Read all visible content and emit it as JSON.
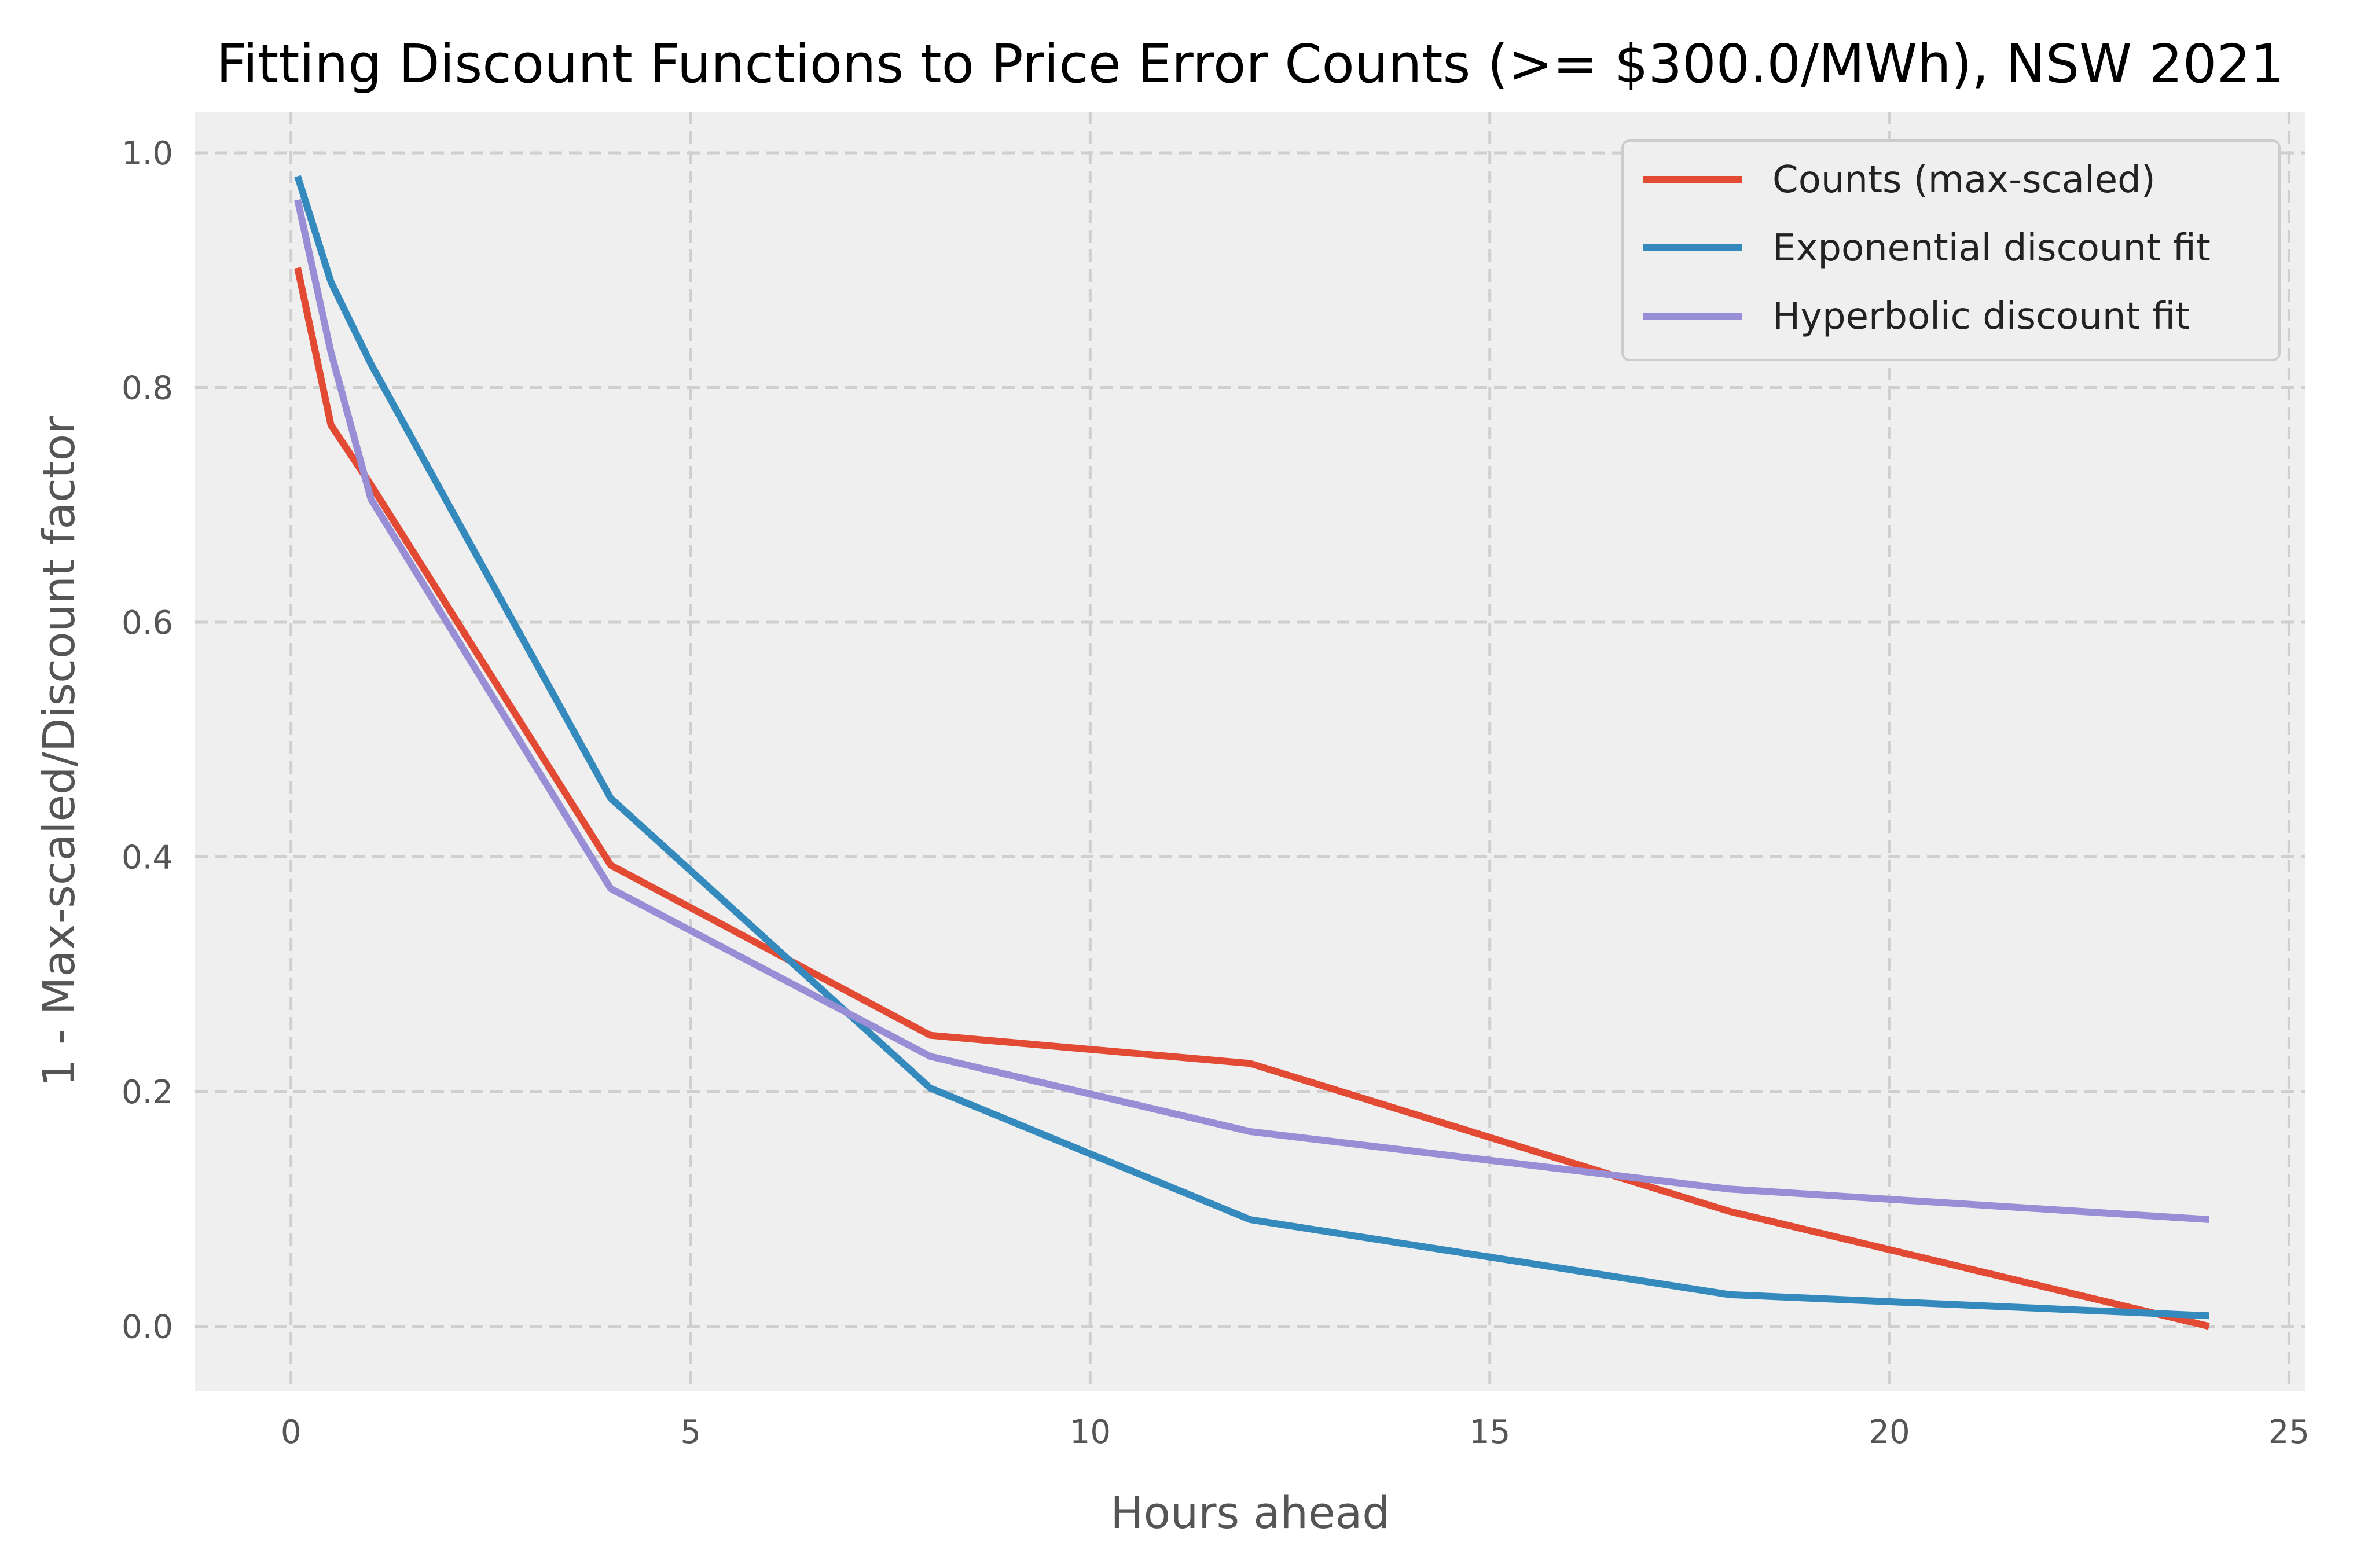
{
  "chart_data": {
    "type": "line",
    "title": "Fitting Discount Functions to Price Error Counts (>= $300.0/MWh), NSW 2021",
    "xlabel": "Hours ahead",
    "ylabel": "1 - Max-scaled/Discount factor",
    "xlim": [
      -1.2,
      25.2
    ],
    "ylim": [
      -0.055,
      1.035
    ],
    "xticks": [
      0,
      5,
      10,
      15,
      20,
      25
    ],
    "yticks": [
      0.0,
      0.2,
      0.4,
      0.6,
      0.8,
      1.0
    ],
    "xtick_labels": [
      "0",
      "5",
      "10",
      "15",
      "20",
      "25"
    ],
    "ytick_labels": [
      "0.0",
      "0.2",
      "0.4",
      "0.6",
      "0.8",
      "1.0"
    ],
    "grid": true,
    "legend_position": "top-right",
    "series": [
      {
        "name": "Counts (max-scaled)",
        "color": "#e24a33",
        "x": [
          0.083,
          0.5,
          1,
          4,
          8,
          12,
          18,
          24
        ],
        "y": [
          0.902,
          0.768,
          0.717,
          0.393,
          0.248,
          0.224,
          0.098,
          0.0
        ]
      },
      {
        "name": "Exponential discount fit",
        "color": "#348abd",
        "x": [
          0.083,
          0.5,
          1,
          4,
          8,
          12,
          18,
          24
        ],
        "y": [
          0.98,
          0.89,
          0.82,
          0.45,
          0.203,
          0.091,
          0.027,
          0.009
        ]
      },
      {
        "name": "Hyperbolic discount fit",
        "color": "#988ed5",
        "x": [
          0.083,
          0.5,
          1,
          4,
          8,
          12,
          18,
          24
        ],
        "y": [
          0.96,
          0.83,
          0.705,
          0.373,
          0.23,
          0.166,
          0.117,
          0.091
        ]
      }
    ]
  },
  "colors": {
    "plot_background": "#efefef",
    "grid": "#cfcfcf"
  }
}
